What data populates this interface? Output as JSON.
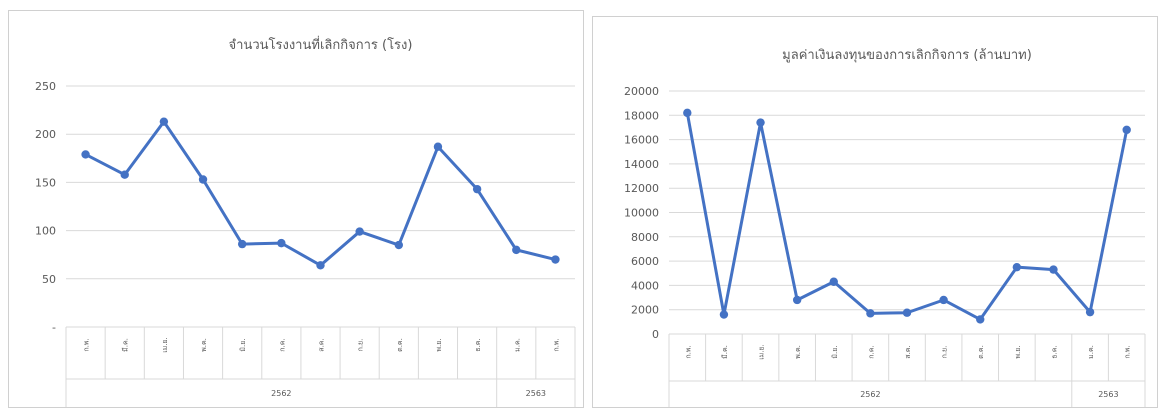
{
  "charts": [
    {
      "chart_data": {
        "type": "line",
        "title": "จำนวนโรงงานที่เลิกกิจการ (โรง)",
        "categories": [
          "ก.พ.",
          "มี.ค.",
          "เม.ย.",
          "พ.ค.",
          "มิ.ย.",
          "ก.ค.",
          "ส.ค.",
          "ก.ย.",
          "ต.ค.",
          "พ.ย.",
          "ธ.ค.",
          "ม.ค.",
          "ก.พ."
        ],
        "year_groups": [
          {
            "label": "2562",
            "start": 0,
            "end": 10
          },
          {
            "label": "2563",
            "start": 11,
            "end": 12
          }
        ],
        "series": [
          {
            "values": [
              179,
              158,
              213,
              153,
              86,
              87,
              64,
              99,
              85,
              187,
              143,
              80,
              70
            ]
          }
        ],
        "ylim": [
          0,
          250
        ],
        "yticks": [
          0,
          50,
          100,
          150,
          200,
          250
        ],
        "ytick_labels": [
          "-",
          "50",
          "100",
          "150",
          "200",
          "250"
        ],
        "grid": true,
        "line_color": "#4472c4"
      }
    },
    {
      "chart_data": {
        "type": "line",
        "title": "มูลค่าเงินลงทุนของการเลิกกิจการ (ล้านบาท)",
        "categories": [
          "ก.พ.",
          "มี.ค.",
          "เม.ย.",
          "พ.ค.",
          "มิ.ย.",
          "ก.ค.",
          "ส.ค.",
          "ก.ย.",
          "ต.ค.",
          "พ.ย.",
          "ธ.ค.",
          "ม.ค.",
          "ก.พ."
        ],
        "year_groups": [
          {
            "label": "2562",
            "start": 0,
            "end": 10
          },
          {
            "label": "2563",
            "start": 11,
            "end": 12
          }
        ],
        "series": [
          {
            "values": [
              18200,
              1600,
              17400,
              2800,
              4300,
              1700,
              1750,
              2800,
              1200,
              5500,
              5300,
              1800,
              16800
            ]
          }
        ],
        "ylim": [
          0,
          20000
        ],
        "yticks": [
          0,
          2000,
          4000,
          6000,
          8000,
          10000,
          12000,
          14000,
          16000,
          18000,
          20000
        ],
        "ytick_labels": [
          "0",
          "2000",
          "4000",
          "6000",
          "8000",
          "10000",
          "12000",
          "14000",
          "16000",
          "18000",
          "20000"
        ],
        "grid": true,
        "line_color": "#4472c4"
      }
    }
  ]
}
